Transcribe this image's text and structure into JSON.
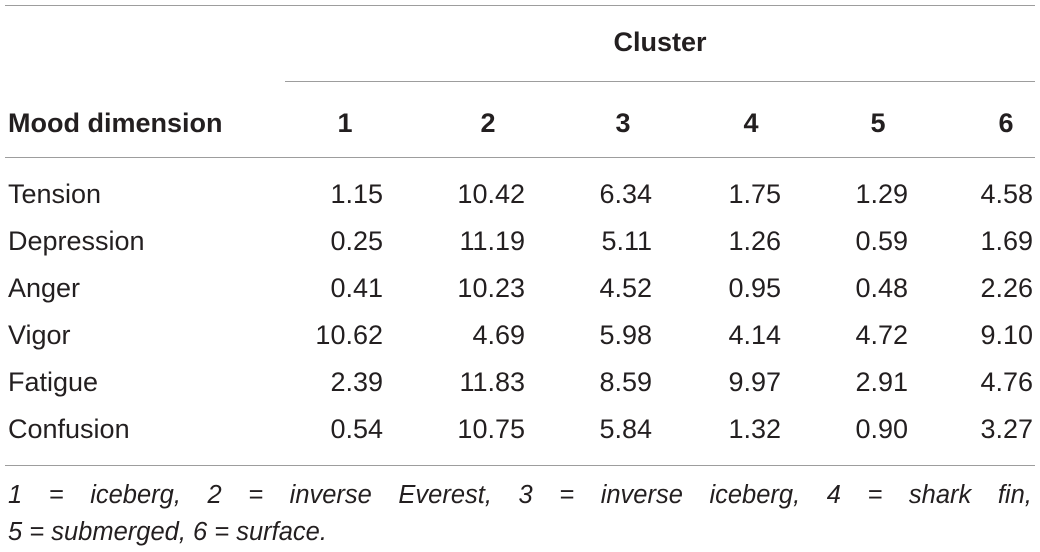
{
  "table": {
    "group_header": "Cluster",
    "row_header": "Mood dimension",
    "columns": [
      "1",
      "2",
      "3",
      "4",
      "5",
      "6"
    ],
    "rows": [
      {
        "label": "Tension",
        "values": [
          "1.15",
          "10.42",
          "6.34",
          "1.75",
          "1.29",
          "4.58"
        ]
      },
      {
        "label": "Depression",
        "values": [
          "0.25",
          "11.19",
          "5.11",
          "1.26",
          "0.59",
          "1.69"
        ]
      },
      {
        "label": "Anger",
        "values": [
          "0.41",
          "10.23",
          "4.52",
          "0.95",
          "0.48",
          "2.26"
        ]
      },
      {
        "label": "Vigor",
        "values": [
          "10.62",
          "4.69",
          "5.98",
          "4.14",
          "4.72",
          "9.10"
        ]
      },
      {
        "label": "Fatigue",
        "values": [
          "2.39",
          "11.83",
          "8.59",
          "9.97",
          "2.91",
          "4.76"
        ]
      },
      {
        "label": "Confusion",
        "values": [
          "0.54",
          "10.75",
          "5.84",
          "1.32",
          "0.90",
          "3.27"
        ]
      }
    ],
    "footnote": {
      "line1": [
        "1",
        "=",
        "iceberg,",
        "2",
        "=",
        "inverse",
        "Everest,",
        "3",
        "=",
        "inverse",
        "iceberg,",
        "4",
        "=",
        "shark",
        "fin,"
      ],
      "line2": "5 = submerged, 6 = surface."
    }
  }
}
